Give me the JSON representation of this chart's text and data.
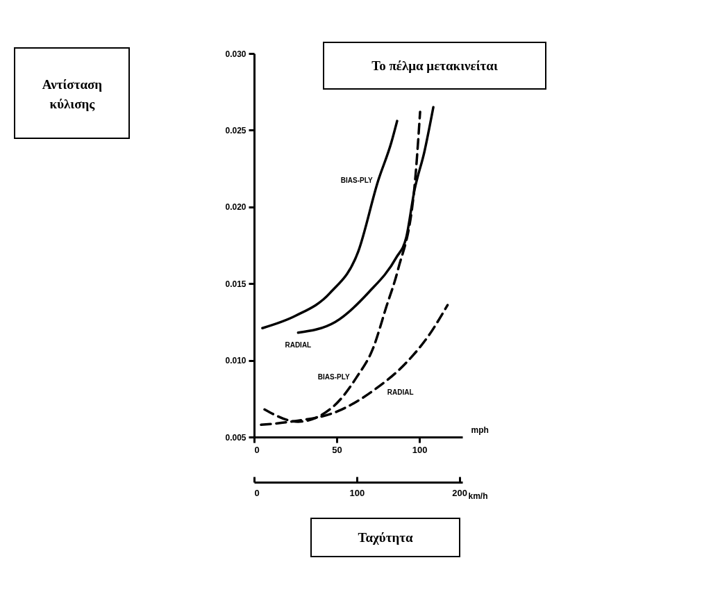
{
  "chart_data": {
    "type": "line",
    "xlabel": "mph",
    "x2label": "km/h",
    "xlim": [
      0,
      126
    ],
    "xticks": [
      0,
      50,
      100
    ],
    "x2lim": [
      0,
      203
    ],
    "x2ticks": [
      0,
      100,
      200
    ],
    "ylim": [
      0.005,
      0.03
    ],
    "yticks": [
      {
        "value": 0.005,
        "label": "0.005"
      },
      {
        "value": 0.01,
        "label": "0.010"
      },
      {
        "value": 0.015,
        "label": "0.015"
      },
      {
        "value": 0.02,
        "label": "0.020"
      },
      {
        "value": 0.025,
        "label": "0.025"
      },
      {
        "value": 0.03,
        "label": "0.030"
      }
    ],
    "grid": false,
    "marker": "none",
    "series": [
      {
        "color": "#000000",
        "line_style": "solid",
        "x": [
          5,
          25,
          46,
          63,
          75,
          83,
          86.5
        ],
        "values": [
          0.0121,
          0.0129,
          0.0144,
          0.0171,
          0.0217,
          0.0242,
          0.0256
        ]
      },
      {
        "color": "#000000",
        "line_style": "solid",
        "x": [
          26.6,
          49,
          69,
          86,
          92,
          97,
          103,
          108.4
        ],
        "values": [
          0.0118,
          0.0125,
          0.0144,
          0.0167,
          0.018,
          0.0211,
          0.0236,
          0.0265
        ]
      },
      {
        "color": "#000000",
        "line_style": "dashed",
        "x": [
          6.3,
          26.6,
          48,
          62,
          72,
          80,
          87,
          97,
          100.4
        ],
        "values": [
          0.0068,
          0.006,
          0.007,
          0.0089,
          0.0108,
          0.0135,
          0.0159,
          0.0213,
          0.0262
        ]
      },
      {
        "color": "#000000",
        "line_style": "dashed",
        "x": [
          4.2,
          22,
          51,
          73,
          91.6,
          105.5,
          117
        ],
        "values": [
          0.0058,
          0.006,
          0.0067,
          0.0081,
          0.0098,
          0.0116,
          0.0136
        ]
      }
    ],
    "annotations": [
      {
        "text": "BIAS-PLY",
        "x": 75,
        "y": 0.0217
      },
      {
        "text": "RADIAL",
        "x": 26.6,
        "y": 0.0118
      },
      {
        "text": "BIAS-PLY",
        "x": 62,
        "y": 0.0089
      },
      {
        "text": "RADIAL",
        "x": 73,
        "y": 0.0081
      },
      "Αντίσταση κύλισης",
      "Το πέλμα μετακινείται",
      "Ταχύτητα"
    ]
  }
}
